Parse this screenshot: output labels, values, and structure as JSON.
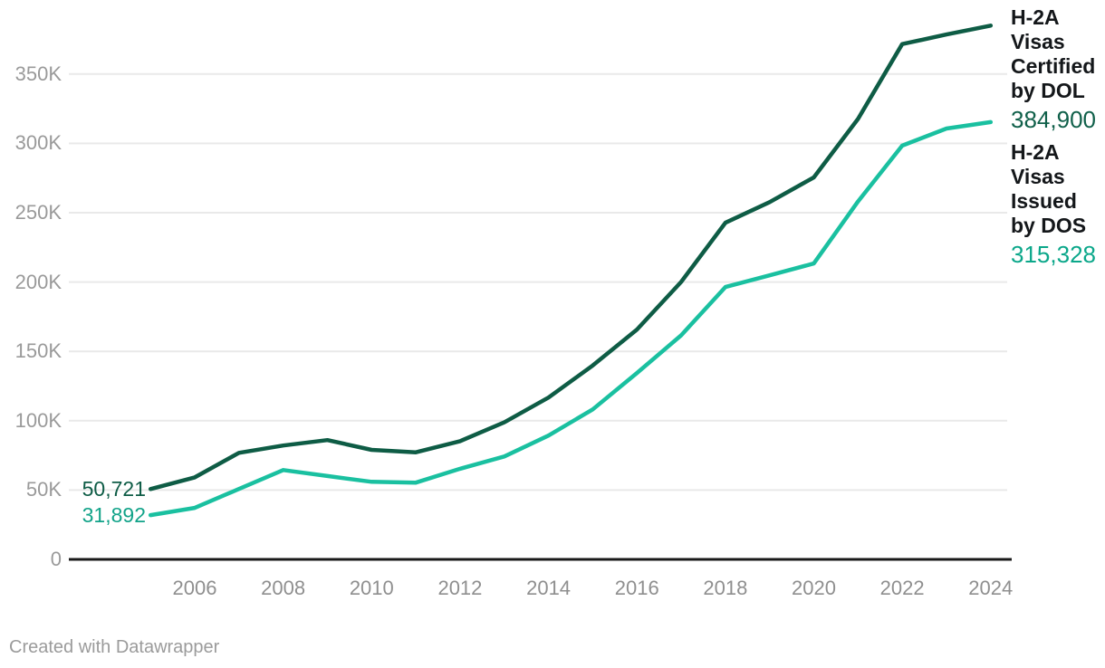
{
  "chart_data": {
    "type": "line",
    "title": "",
    "xlabel": "",
    "ylabel": "",
    "grid": "horizontal",
    "legend_position": "right",
    "ylim": [
      0,
      400000
    ],
    "x": [
      2005,
      2006,
      2007,
      2008,
      2009,
      2010,
      2011,
      2012,
      2013,
      2014,
      2015,
      2016,
      2017,
      2018,
      2019,
      2020,
      2021,
      2022,
      2023,
      2024
    ],
    "x_ticks": [
      2006,
      2008,
      2010,
      2012,
      2014,
      2016,
      2018,
      2020,
      2022,
      2024
    ],
    "y_ticks": [
      {
        "label": "0",
        "value": 0
      },
      {
        "label": "50K",
        "value": 50000
      },
      {
        "label": "100K",
        "value": 100000
      },
      {
        "label": "150K",
        "value": 150000
      },
      {
        "label": "200K",
        "value": 200000
      },
      {
        "label": "250K",
        "value": 250000
      },
      {
        "label": "300K",
        "value": 300000
      },
      {
        "label": "350K",
        "value": 350000
      }
    ],
    "series": [
      {
        "name": "H-2A Visas Certified by DOL",
        "color": "#0e5c45",
        "first_label": "50,721",
        "last_label": "384,900",
        "values": [
          50721,
          59112,
          76814,
          82099,
          86014,
          79011,
          77246,
          85248,
          98821,
          116689,
          139832,
          165741,
          200049,
          242762,
          257667,
          275430,
          317619,
          371619,
          378513,
          384900
        ]
      },
      {
        "name": "H-2A Visas Issued by DOS",
        "color": "#1ac0a0",
        "first_label": "31,892",
        "last_label": "315,328",
        "values": [
          31892,
          37149,
          50791,
          64404,
          60112,
          55921,
          55384,
          65345,
          74192,
          89274,
          108144,
          134368,
          161583,
          196409,
          204801,
          213394,
          258062,
          298336,
          310676,
          315328
        ]
      }
    ]
  },
  "colors": {
    "certified_line": "#0e5c45",
    "issued_line": "#1ac0a0",
    "certified_value_text": "#10604a",
    "issued_value_text": "#0ba78a",
    "gridline": "#e9e9e9",
    "axis": "#1a1a1a",
    "tick_text": "#979797"
  },
  "footer": {
    "credit": "Created with Datawrapper"
  }
}
